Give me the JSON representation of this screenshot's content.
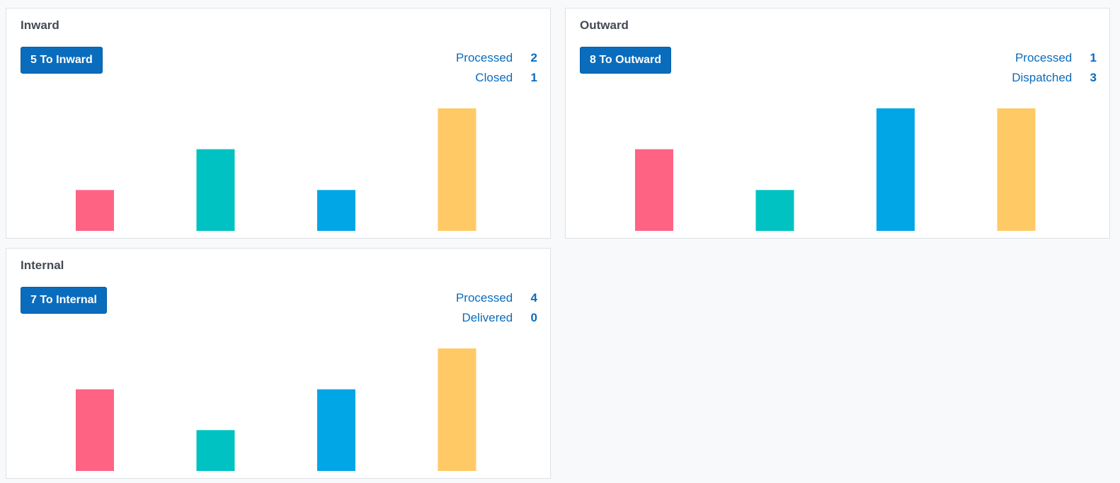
{
  "colors": {
    "bar_1": "#ff6384",
    "bar_2": "#00c2c2",
    "bar_3": "#00a6e6",
    "bar_4": "#ffca66",
    "accent": "#0a6cbd"
  },
  "panels": [
    {
      "id": "inward",
      "title": "Inward",
      "button_label": "5 To Inward",
      "stats": [
        {
          "label": "Processed",
          "value": "2"
        },
        {
          "label": "Closed",
          "value": "1"
        }
      ]
    },
    {
      "id": "outward",
      "title": "Outward",
      "button_label": "8 To Outward",
      "stats": [
        {
          "label": "Processed",
          "value": "1"
        },
        {
          "label": "Dispatched",
          "value": "3"
        }
      ]
    },
    {
      "id": "internal",
      "title": "Internal",
      "button_label": "7 To Internal",
      "stats": [
        {
          "label": "Processed",
          "value": "4"
        },
        {
          "label": "Delivered",
          "value": "0"
        }
      ]
    }
  ],
  "chart_data": [
    {
      "type": "bar",
      "panel": "Inward",
      "values": [
        1,
        2,
        1,
        3
      ],
      "ylim": [
        0,
        3
      ],
      "grid": false
    },
    {
      "type": "bar",
      "panel": "Outward",
      "values": [
        2,
        1,
        3,
        3
      ],
      "ylim": [
        0,
        3
      ],
      "grid": false
    },
    {
      "type": "bar",
      "panel": "Internal",
      "values": [
        2,
        1,
        2,
        3
      ],
      "ylim": [
        0,
        3
      ],
      "grid": false
    }
  ]
}
